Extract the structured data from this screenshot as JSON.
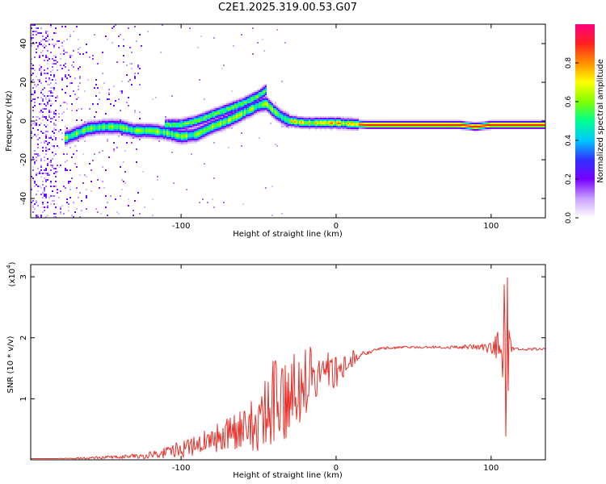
{
  "title": "C2E1.2025.319.00.53.G07",
  "chart_data": [
    {
      "type": "heatmap",
      "title": "C2E1.2025.319.00.53.G07",
      "xlabel": "Height of straight line (km)",
      "ylabel": "Frequency (Hz)",
      "xlim": [
        -197,
        135
      ],
      "ylim": [
        -50,
        50
      ],
      "x_ticks": [
        -100,
        0,
        100
      ],
      "x_tick_labels": [
        "-100",
        "0",
        "100"
      ],
      "y_ticks": [
        -40,
        -20,
        0,
        20,
        40
      ],
      "y_tick_labels": [
        "-40",
        "-20",
        "0",
        "20",
        "40"
      ],
      "colorbar": {
        "label": "Normalized spectral amplitude",
        "range": [
          0,
          1
        ],
        "ticks": [
          0,
          0.2,
          0.4,
          0.6,
          0.8
        ],
        "tick_labels": [
          "0.0",
          "0.2",
          "0.4",
          "0.6",
          "0.8"
        ],
        "colors": [
          "#ffffff",
          "#c8a0ff",
          "#7800ff",
          "#3030ff",
          "#00c8ff",
          "#00ff90",
          "#80ff00",
          "#ffff00",
          "#ff9000",
          "#ff2020",
          "#ff0080"
        ]
      },
      "ridge": {
        "x": [
          -175,
          -160,
          -150,
          -140,
          -130,
          -120,
          -110,
          -100,
          -90,
          -80,
          -70,
          -60,
          -50,
          -45,
          -40,
          -35,
          -30,
          -20,
          -10,
          0,
          20,
          40,
          60,
          80,
          90,
          100,
          110,
          120,
          135
        ],
        "freq": [
          -9,
          -4,
          -3,
          -3,
          -5,
          -5,
          -6,
          -8,
          -7,
          -3,
          0,
          4,
          8,
          9,
          5,
          2,
          0,
          -1,
          -1,
          -1,
          -2,
          -2,
          -2,
          -2,
          -3,
          -2,
          -2,
          -2,
          -2
        ]
      },
      "branch": {
        "x": [
          -110,
          -100,
          -90,
          -80,
          -70,
          -60,
          -50,
          -45
        ],
        "freq": [
          -2,
          -2,
          0,
          3,
          6,
          9,
          13,
          16
        ]
      }
    },
    {
      "type": "line",
      "xlabel": "Height of straight line (km)",
      "ylabel": "SNR (10 * v/v)",
      "y_scale_label": "(x10",
      "y_scale_exponent": "4",
      "y_scale_suffix": ")",
      "xlim": [
        -197,
        135
      ],
      "ylim": [
        0,
        3.2
      ],
      "x_ticks": [
        -100,
        0,
        100
      ],
      "x_tick_labels": [
        "-100",
        "0",
        "100"
      ],
      "y_ticks": [
        1,
        2,
        3
      ],
      "y_tick_labels": [
        "1",
        "2",
        "3"
      ],
      "series": [
        {
          "name": "SNR",
          "color": "#e8302a",
          "x": [
            -197,
            -180,
            -160,
            -140,
            -130,
            -120,
            -110,
            -100,
            -90,
            -80,
            -70,
            -60,
            -50,
            -45,
            -40,
            -35,
            -30,
            -25,
            -20,
            -15,
            -10,
            -5,
            0,
            5,
            10,
            15,
            20,
            25,
            30,
            40,
            50,
            60,
            70,
            80,
            90,
            100,
            105,
            108,
            109,
            110,
            111,
            112,
            115,
            120,
            135
          ],
          "y": [
            0.02,
            0.02,
            0.03,
            0.05,
            0.06,
            0.08,
            0.12,
            0.18,
            0.25,
            0.32,
            0.42,
            0.5,
            0.6,
            0.75,
            0.95,
            1.1,
            1.2,
            1.25,
            1.3,
            1.35,
            1.42,
            1.45,
            1.47,
            1.55,
            1.65,
            1.72,
            1.75,
            1.8,
            1.83,
            1.84,
            1.84,
            1.85,
            1.84,
            1.85,
            1.86,
            1.85,
            1.9,
            2.0,
            1.8,
            1.7,
            1.95,
            1.85,
            1.82,
            1.81,
            1.82
          ],
          "noise_amplitude": [
            0,
            0,
            0.02,
            0.03,
            0.04,
            0.06,
            0.1,
            0.15,
            0.18,
            0.22,
            0.28,
            0.35,
            0.45,
            0.7,
            0.9,
            0.85,
            0.8,
            0.7,
            0.6,
            0.5,
            0.4,
            0.35,
            0.3,
            0.25,
            0.15,
            0.05,
            0.03,
            0.02,
            0.02,
            0.02,
            0.02,
            0.02,
            0.02,
            0.03,
            0.05,
            0.12,
            0.3,
            0.8,
            1.4,
            1.6,
            0.9,
            0.3,
            0.05,
            0.02,
            0.02
          ]
        }
      ]
    }
  ]
}
